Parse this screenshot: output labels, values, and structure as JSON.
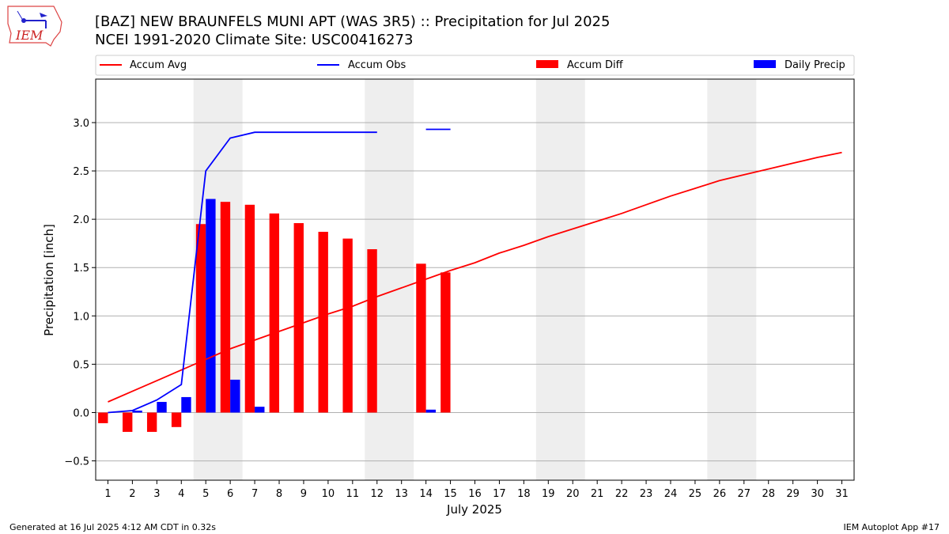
{
  "header": {
    "title_line1": "[BAZ] NEW BRAUNFELS MUNI APT (WAS 3R5) :: Precipitation for Jul 2025",
    "title_line2": "NCEI 1991-2020 Climate Site: USC00416273",
    "logo_text": "IEM"
  },
  "footer": {
    "generated": "Generated at 16 Jul 2025 4:12 AM CDT in 0.32s",
    "app": "IEM Autoplot App #17"
  },
  "chart_data": {
    "type": "bar",
    "xlabel": "July 2025",
    "ylabel": "Precipitation [inch]",
    "xlim": [
      0.5,
      31.5
    ],
    "ylim": [
      -0.7,
      3.45
    ],
    "yticks": [
      -0.5,
      0.0,
      0.5,
      1.0,
      1.5,
      2.0,
      2.5,
      3.0
    ],
    "ytick_labels": [
      "−0.5",
      "0.0",
      "0.5",
      "1.0",
      "1.5",
      "2.0",
      "2.5",
      "3.0"
    ],
    "x": [
      1,
      2,
      3,
      4,
      5,
      6,
      7,
      8,
      9,
      10,
      11,
      12,
      13,
      14,
      15,
      16,
      17,
      18,
      19,
      20,
      21,
      22,
      23,
      24,
      25,
      26,
      27,
      28,
      29,
      30,
      31
    ],
    "xtick_labels": [
      "1",
      "2",
      "3",
      "4",
      "5",
      "6",
      "7",
      "8",
      "9",
      "10",
      "11",
      "12",
      "13",
      "14",
      "15",
      "16",
      "17",
      "18",
      "19",
      "20",
      "21",
      "22",
      "23",
      "24",
      "25",
      "26",
      "27",
      "28",
      "29",
      "30",
      "31"
    ],
    "grid": "horizontal",
    "legend_position": "top",
    "weekend_shading": [
      [
        4.5,
        6.5
      ],
      [
        11.5,
        13.5
      ],
      [
        18.5,
        20.5
      ],
      [
        25.5,
        27.5
      ]
    ],
    "series": [
      {
        "name": "Accum Avg",
        "kind": "line",
        "color": "#ff0000",
        "values": [
          0.11,
          0.22,
          0.33,
          0.44,
          0.55,
          0.66,
          0.75,
          0.84,
          0.93,
          1.02,
          1.1,
          1.2,
          1.29,
          1.38,
          1.47,
          1.55,
          1.65,
          1.73,
          1.82,
          1.9,
          1.98,
          2.06,
          2.15,
          2.24,
          2.32,
          2.4,
          2.46,
          2.52,
          2.58,
          2.64,
          2.69
        ]
      },
      {
        "name": "Accum Obs",
        "kind": "line",
        "color": "#0000ff",
        "values": [
          0.0,
          0.02,
          0.13,
          0.29,
          2.5,
          2.84,
          2.9,
          2.9,
          2.9,
          2.9,
          2.9,
          2.9,
          null,
          2.93,
          2.93,
          null,
          null,
          null,
          null,
          null,
          null,
          null,
          null,
          null,
          null,
          null,
          null,
          null,
          null,
          null,
          null
        ]
      },
      {
        "name": "Accum Diff",
        "kind": "bar",
        "color": "#ff0000",
        "values": [
          -0.11,
          -0.2,
          -0.2,
          -0.15,
          1.95,
          2.18,
          2.15,
          2.06,
          1.96,
          1.87,
          1.8,
          1.69,
          null,
          1.54,
          1.45,
          null,
          null,
          null,
          null,
          null,
          null,
          null,
          null,
          null,
          null,
          null,
          null,
          null,
          null,
          null,
          null
        ]
      },
      {
        "name": "Daily Precip",
        "kind": "bar",
        "color": "#0000ff",
        "values": [
          0.0,
          0.02,
          0.11,
          0.16,
          2.21,
          0.34,
          0.06,
          0.0,
          0.0,
          0.0,
          0.0,
          0.0,
          null,
          0.03,
          0.0,
          null,
          null,
          null,
          null,
          null,
          null,
          null,
          null,
          null,
          null,
          null,
          null,
          null,
          null,
          null,
          null
        ]
      }
    ]
  }
}
